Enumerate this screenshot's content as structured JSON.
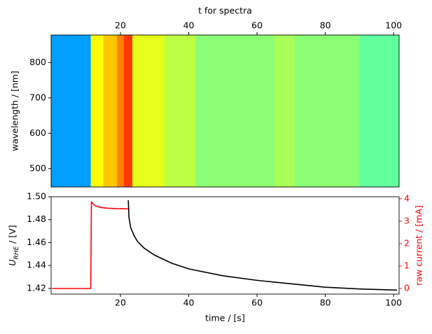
{
  "chart_data": [
    {
      "type": "heatmap",
      "xlabel": "t for spectra",
      "ylabel": "wavelength / [nm]",
      "xaxis_position": "top",
      "xlim": [
        -0.3,
        101.6
      ],
      "xticks": [
        20,
        40,
        60,
        80,
        100
      ],
      "ylim": [
        448,
        878
      ],
      "yticks": [
        500,
        600,
        700,
        800
      ],
      "heatmap": {
        "colormap": "jet",
        "bins": [
          -0.3,
          11.3,
          15,
          19,
          21,
          23.5,
          33,
          42,
          65,
          71,
          90,
          101.6
        ],
        "values": [
          0.28,
          0.62,
          0.68,
          0.75,
          0.82,
          0.6,
          0.56,
          0.51,
          0.54,
          0.51,
          0.47
        ]
      }
    },
    {
      "type": "line",
      "xlabel": "time / [s]",
      "ylabel_parts": [
        "U",
        "RHE",
        " / [V]"
      ],
      "y2label": "raw current / [mA]",
      "y2color": "#ff0000",
      "xlim": [
        -0.3,
        101.6
      ],
      "xticks": [
        20,
        40,
        60,
        80,
        100
      ],
      "ylim": [
        1.415,
        1.5
      ],
      "yticks": [
        1.42,
        1.44,
        1.46,
        1.48,
        {
          "value": 1.5,
          "label": "1.50"
        }
      ],
      "y2lim": [
        -0.25,
        4.09
      ],
      "y2ticks": [
        0,
        1,
        2,
        3,
        4
      ],
      "series": [
        {
          "color": "#000000",
          "axis": "y",
          "x": [
            22.3,
            22.5,
            23,
            24,
            25,
            27,
            30,
            35,
            40,
            50,
            60,
            70,
            80,
            90,
            101
          ],
          "values": [
            1.497,
            1.482,
            1.473,
            1.466,
            1.461,
            1.455,
            1.449,
            1.442,
            1.437,
            1.431,
            1.427,
            1.424,
            1.421,
            1.4195,
            1.4185
          ]
        },
        {
          "color": "#ff0000",
          "axis": "y2",
          "x": [
            0,
            11.3,
            11.5,
            12.5,
            14,
            16,
            19,
            22.3
          ],
          "values": [
            0,
            0,
            3.85,
            3.7,
            3.62,
            3.58,
            3.56,
            3.55
          ]
        }
      ]
    }
  ]
}
